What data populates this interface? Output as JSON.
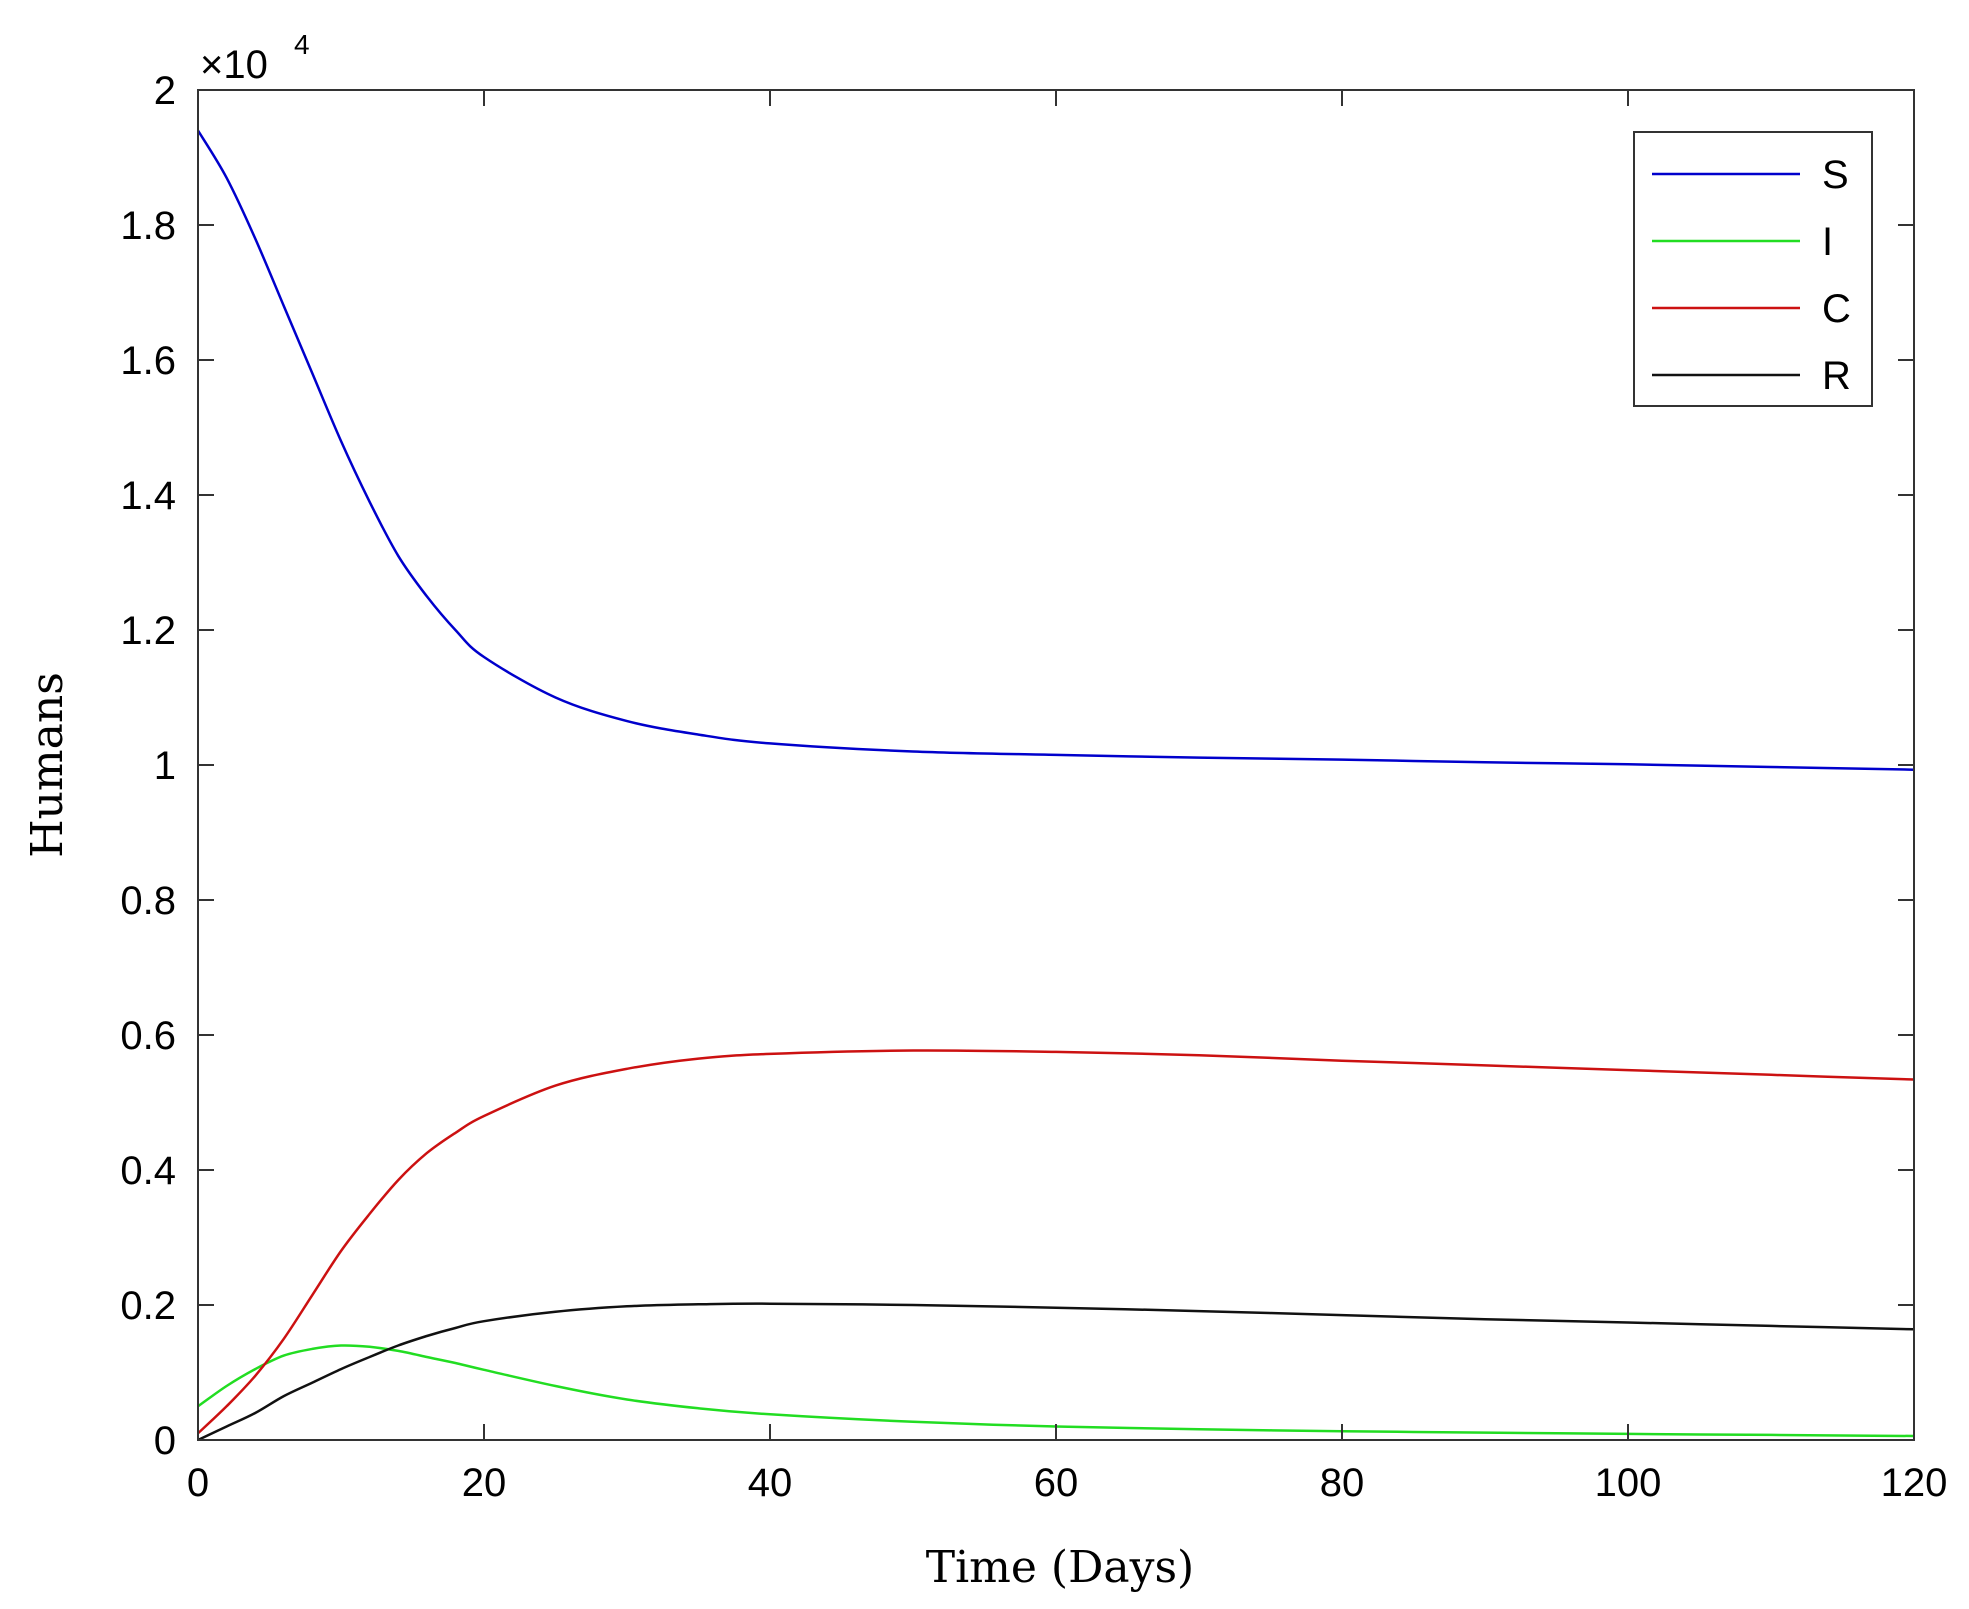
{
  "chart_data": {
    "type": "line",
    "xlabel": "Time (Days)",
    "ylabel": "Humans",
    "xlim": [
      0,
      120
    ],
    "ylim": [
      0,
      20000
    ],
    "x_ticks": [
      0,
      20,
      40,
      60,
      80,
      100,
      120
    ],
    "y_ticks": [
      0,
      0.2,
      0.4,
      0.6,
      0.8,
      1,
      1.2,
      1.4,
      1.6,
      1.8,
      2
    ],
    "y_tick_labels": [
      "0",
      "0.2",
      "0.4",
      "0.6",
      "0.8",
      "1",
      "1.2",
      "1.4",
      "1.6",
      "1.8",
      "2"
    ],
    "y_scale_label": "×10",
    "y_scale_exponent": "4",
    "grid": false,
    "legend_position": "top-right",
    "x": [
      0,
      2,
      4,
      6,
      8,
      10,
      12,
      14,
      16,
      18,
      20,
      25,
      30,
      35,
      40,
      50,
      60,
      70,
      80,
      90,
      100,
      110,
      120
    ],
    "series": [
      {
        "name": "S",
        "color": "#0000cc",
        "values": [
          19400,
          18700,
          17800,
          16800,
          15800,
          14800,
          13900,
          13100,
          12500,
          12000,
          11600,
          11000,
          10650,
          10450,
          10320,
          10200,
          10150,
          10110,
          10080,
          10040,
          10010,
          9970,
          9930
        ]
      },
      {
        "name": "I",
        "color": "#22dd22",
        "values": [
          500,
          800,
          1050,
          1250,
          1350,
          1400,
          1380,
          1320,
          1230,
          1140,
          1040,
          800,
          600,
          470,
          380,
          270,
          200,
          160,
          130,
          110,
          90,
          75,
          60
        ]
      },
      {
        "name": "C",
        "color": "#cc1111",
        "values": [
          100,
          500,
          950,
          1500,
          2150,
          2800,
          3350,
          3850,
          4250,
          4550,
          4800,
          5250,
          5500,
          5650,
          5720,
          5770,
          5750,
          5700,
          5620,
          5550,
          5480,
          5410,
          5340
        ]
      },
      {
        "name": "R",
        "color": "#111111",
        "values": [
          0,
          200,
          400,
          650,
          850,
          1050,
          1230,
          1400,
          1540,
          1660,
          1760,
          1900,
          1980,
          2010,
          2020,
          2000,
          1960,
          1910,
          1850,
          1790,
          1740,
          1690,
          1640
        ]
      }
    ]
  }
}
